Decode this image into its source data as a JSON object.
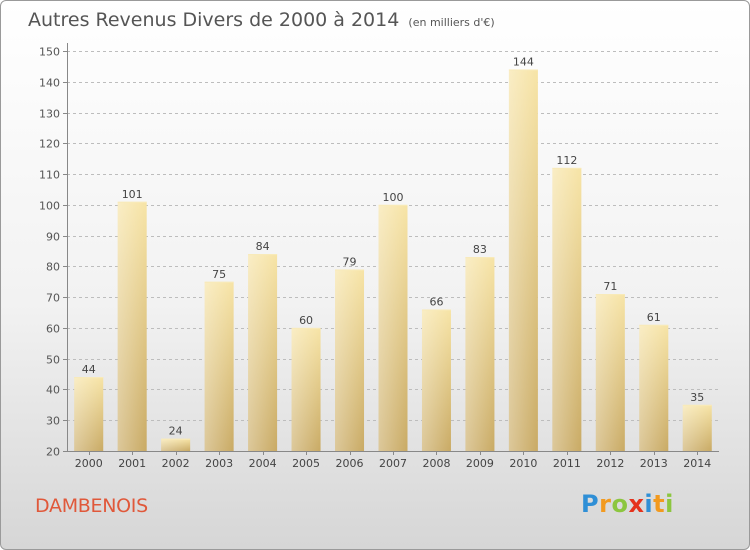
{
  "title": "Autres Revenus Divers de 2000 à 2014",
  "unit_note": "(en milliers d'€)",
  "place_name": "DAMBENOIS",
  "brand": {
    "letters": [
      "P",
      "r",
      "o",
      "x",
      "i",
      "t",
      "i"
    ],
    "colors": [
      "#2f8fd6",
      "#f29a1f",
      "#8cc63f",
      "#e5321c",
      "#2f8fd6",
      "#f29a1f",
      "#8cc63f"
    ]
  },
  "chart_data": {
    "type": "bar",
    "categories": [
      "2000",
      "2001",
      "2002",
      "2003",
      "2004",
      "2005",
      "2006",
      "2007",
      "2008",
      "2009",
      "2010",
      "2011",
      "2012",
      "2013",
      "2014"
    ],
    "values": [
      44,
      101,
      24,
      75,
      84,
      60,
      79,
      100,
      66,
      83,
      144,
      112,
      71,
      61,
      35
    ],
    "ylim": [
      20,
      150
    ],
    "yticks": [
      20,
      30,
      40,
      50,
      60,
      70,
      80,
      90,
      100,
      110,
      120,
      130,
      140,
      150
    ],
    "grid": true,
    "bar_color": "#e8cd82",
    "title": "Autres Revenus Divers de 2000 à 2014",
    "xlabel": "",
    "ylabel": ""
  }
}
